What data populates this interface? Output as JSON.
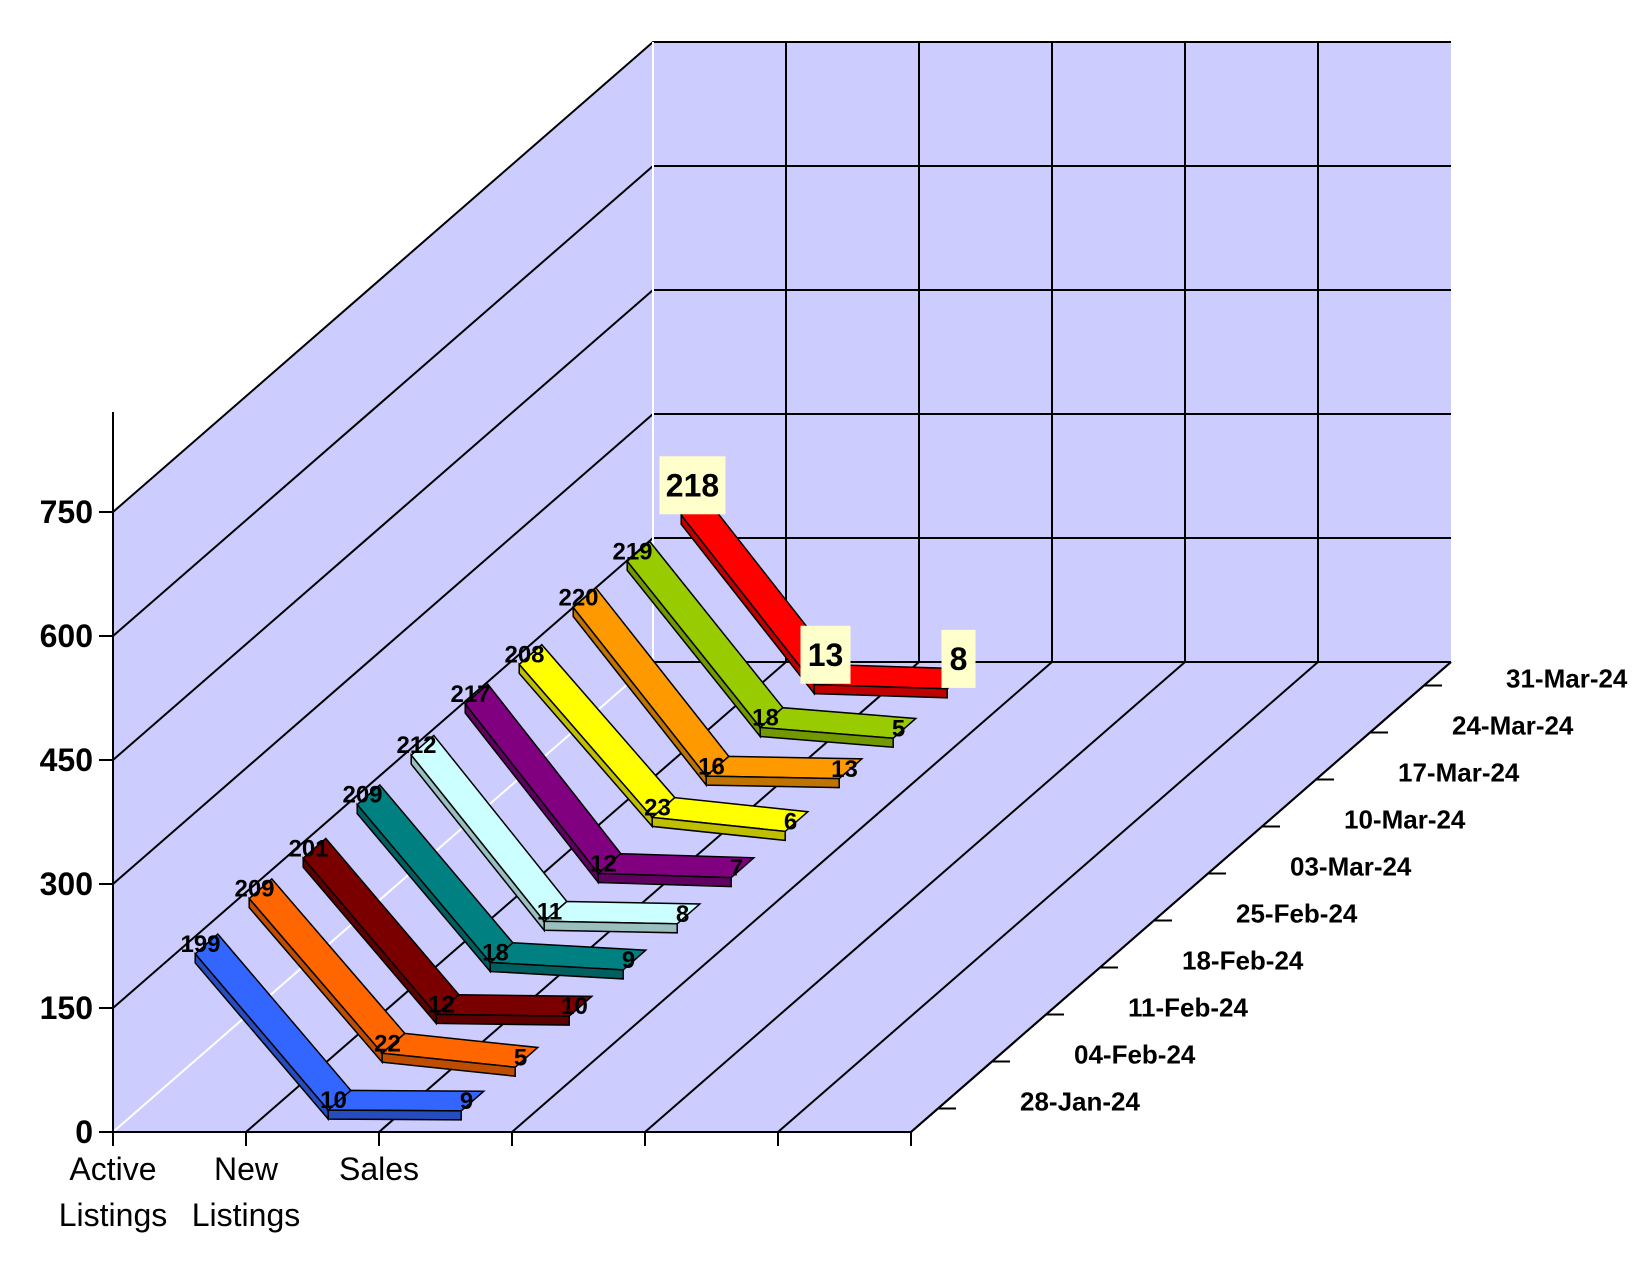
{
  "chart_data": {
    "type": "line",
    "title": "",
    "xlabel": "",
    "ylabel": "",
    "categories": [
      "Active\nListings",
      "New\nListings",
      "Sales"
    ],
    "ylim": [
      0,
      750
    ],
    "y_ticks": [
      0,
      150,
      300,
      450,
      600,
      750
    ],
    "grid": true,
    "series": [
      {
        "name": "28-Jan-24",
        "color": "#3366ff",
        "values": [
          199,
          10,
          9
        ]
      },
      {
        "name": "04-Feb-24",
        "color": "#ff6600",
        "values": [
          209,
          22,
          5
        ]
      },
      {
        "name": "11-Feb-24",
        "color": "#7a0000",
        "values": [
          201,
          12,
          10
        ]
      },
      {
        "name": "18-Feb-24",
        "color": "#008080",
        "values": [
          209,
          18,
          9
        ]
      },
      {
        "name": "25-Feb-24",
        "color": "#ccffff",
        "values": [
          212,
          11,
          8
        ]
      },
      {
        "name": "03-Mar-24",
        "color": "#800080",
        "values": [
          217,
          12,
          7
        ]
      },
      {
        "name": "10-Mar-24",
        "color": "#ffff00",
        "values": [
          208,
          23,
          6
        ]
      },
      {
        "name": "17-Mar-24",
        "color": "#ff9900",
        "values": [
          220,
          16,
          13
        ]
      },
      {
        "name": "24-Mar-24",
        "color": "#99cc00",
        "values": [
          219,
          18,
          5
        ]
      },
      {
        "name": "31-Mar-24",
        "color": "#ff0000",
        "values": [
          218,
          13,
          8
        ]
      }
    ],
    "highlight_series": "31-Mar-24"
  }
}
